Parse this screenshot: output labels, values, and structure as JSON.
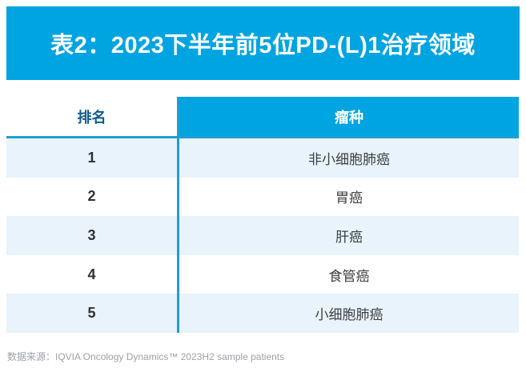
{
  "banner": {
    "title": "表2：2023下半年前5位PD-(L)1治疗领域"
  },
  "table": {
    "columns": {
      "rank": "排名",
      "tumor": "瘤种"
    },
    "rows": [
      {
        "rank": "1",
        "tumor": "非小细胞肺癌"
      },
      {
        "rank": "2",
        "tumor": "胃癌"
      },
      {
        "rank": "3",
        "tumor": "肝癌"
      },
      {
        "rank": "4",
        "tumor": "食管癌"
      },
      {
        "rank": "5",
        "tumor": "小细胞肺癌"
      }
    ]
  },
  "footer": {
    "source": "数据来源：IQVIA Oncology Dynamics™ 2023H2 sample patients"
  },
  "colors": {
    "accent_blue": "#00a4e0",
    "header_text_blue": "#0e5b8d",
    "row_alt_blue": "#e8f3fc",
    "divider_blue": "#1f9ed2",
    "footer_gray": "#9ba1a8"
  }
}
